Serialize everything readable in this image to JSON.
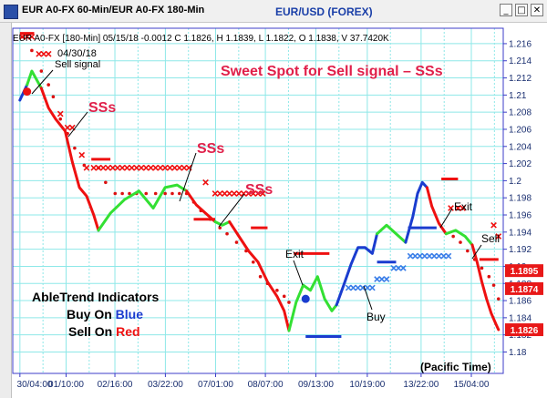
{
  "window": {
    "title": "EUR A0-FX 60-Min/EUR A0-FX 180-Min",
    "caption": "EUR/USD (FOREX)",
    "controls": [
      "_",
      "□",
      "✕"
    ]
  },
  "chart_data": {
    "type": "line",
    "info_line": "EUR A0-FX [180-Min] 05/15/18  -0.0012 C 1.1826, H 1.1839, L 1.1822, O 1.1838, V 37.7420K",
    "x_tick_labels": [
      "30/04:00",
      "01/10:00",
      "02/16:00",
      "03/22:00",
      "07/01:00",
      "08/07:00",
      "09/13:00",
      "10/19:00",
      "13/22:00",
      "15/04:00"
    ],
    "x_tick_positions": [
      0,
      19.4,
      39.9,
      61.1,
      82.2,
      103.1,
      124.3,
      145.9,
      168.5,
      189.6
    ],
    "xlim": [
      -3,
      203
    ],
    "ylim": [
      1.1775,
      1.2178
    ],
    "y_tick_values": [
      1.216,
      1.214,
      1.212,
      1.21,
      1.208,
      1.206,
      1.204,
      1.202,
      1.2,
      1.198,
      1.196,
      1.194,
      1.192,
      1.19,
      1.188,
      1.186,
      1.184,
      1.182,
      1.18
    ],
    "y_tick_labels": [
      "1.216",
      "1.214",
      "1.212",
      "1.21",
      "1.208",
      "1.206",
      "1.204",
      "1.202",
      "1.2",
      "1.198",
      "1.196",
      "1.194",
      "1.192",
      "1.19",
      "1.188",
      "1.186",
      "1.184",
      "1.182",
      "1.18"
    ],
    "price_tags": [
      {
        "value": 1.1895,
        "label": "1.1895"
      },
      {
        "value": 1.1874,
        "label": "1.1874"
      },
      {
        "value": 1.1826,
        "label": "1.1826"
      }
    ],
    "grid": true,
    "colors": {
      "up": "#1a3ccf",
      "down": "#ee1111",
      "neutral": "#33e033",
      "grid": "#8ee8e8",
      "stop_dot": "#dd1111",
      "stop_x_red": "#ee1111",
      "stop_x_blue": "#3a7ee8"
    },
    "price_segments": [
      {
        "color": "#1a3ccf",
        "points": [
          [
            0,
            1.2094
          ],
          [
            3,
            1.2112
          ]
        ]
      },
      {
        "color": "#33e033",
        "points": [
          [
            3,
            1.2112
          ],
          [
            5,
            1.2128
          ],
          [
            7,
            1.2118
          ],
          [
            9,
            1.2108
          ]
        ]
      },
      {
        "color": "#ee1111",
        "points": [
          [
            9,
            1.2108
          ],
          [
            12,
            1.2085
          ],
          [
            15,
            1.2072
          ],
          [
            19,
            1.2058
          ],
          [
            22,
            1.2022
          ],
          [
            25,
            1.1992
          ],
          [
            28,
            1.1982
          ],
          [
            31,
            1.196
          ],
          [
            33,
            1.1942
          ]
        ]
      },
      {
        "color": "#33e033",
        "points": [
          [
            33,
            1.1942
          ],
          [
            38,
            1.1962
          ],
          [
            44,
            1.1978
          ],
          [
            50,
            1.1988
          ],
          [
            56,
            1.1968
          ],
          [
            61,
            1.1992
          ],
          [
            66,
            1.1995
          ],
          [
            70,
            1.1988
          ]
        ]
      },
      {
        "color": "#ee1111",
        "points": [
          [
            70,
            1.1988
          ],
          [
            74,
            1.1972
          ],
          [
            78,
            1.1962
          ],
          [
            82,
            1.1952
          ]
        ]
      },
      {
        "color": "#33e033",
        "points": [
          [
            82,
            1.1952
          ],
          [
            85,
            1.1948
          ],
          [
            88,
            1.1952
          ]
        ]
      },
      {
        "color": "#ee1111",
        "points": [
          [
            88,
            1.1952
          ],
          [
            92,
            1.1935
          ],
          [
            96,
            1.1918
          ],
          [
            100,
            1.1905
          ],
          [
            104,
            1.1882
          ],
          [
            108,
            1.1865
          ],
          [
            111,
            1.1848
          ],
          [
            113,
            1.1825
          ]
        ]
      },
      {
        "color": "#33e033",
        "points": [
          [
            113,
            1.1825
          ],
          [
            116,
            1.1858
          ],
          [
            119,
            1.1878
          ],
          [
            122,
            1.1872
          ],
          [
            125,
            1.1888
          ],
          [
            128,
            1.1862
          ],
          [
            131,
            1.1848
          ],
          [
            133,
            1.1855
          ]
        ]
      },
      {
        "color": "#1a3ccf",
        "points": [
          [
            133,
            1.1855
          ],
          [
            136,
            1.1878
          ],
          [
            139,
            1.1902
          ],
          [
            142,
            1.1922
          ],
          [
            145,
            1.1922
          ],
          [
            148,
            1.1915
          ],
          [
            150,
            1.1938
          ]
        ]
      },
      {
        "color": "#33e033",
        "points": [
          [
            150,
            1.1938
          ],
          [
            154,
            1.1948
          ],
          [
            158,
            1.1938
          ],
          [
            162,
            1.1928
          ]
        ]
      },
      {
        "color": "#1a3ccf",
        "points": [
          [
            162,
            1.1928
          ],
          [
            165,
            1.1958
          ],
          [
            167,
            1.1985
          ],
          [
            169,
            1.1998
          ],
          [
            171,
            1.1992
          ]
        ]
      },
      {
        "color": "#ee1111",
        "points": [
          [
            171,
            1.1992
          ],
          [
            173,
            1.197
          ],
          [
            176,
            1.195
          ],
          [
            179,
            1.1938
          ]
        ]
      },
      {
        "color": "#33e033",
        "points": [
          [
            179,
            1.1938
          ],
          [
            183,
            1.1942
          ],
          [
            187,
            1.1935
          ],
          [
            190,
            1.1925
          ]
        ]
      },
      {
        "color": "#ee1111",
        "points": [
          [
            190,
            1.1925
          ],
          [
            192,
            1.1905
          ],
          [
            194,
            1.1882
          ],
          [
            196,
            1.1862
          ],
          [
            198,
            1.1845
          ],
          [
            200,
            1.1832
          ],
          [
            201,
            1.1826
          ]
        ]
      }
    ],
    "stops": {
      "dots": [
        [
          1,
          1.2168
        ],
        [
          5,
          1.2152
        ],
        [
          9,
          1.2128
        ],
        [
          12,
          1.2112
        ],
        [
          14,
          1.2098
        ],
        [
          17,
          1.2072
        ],
        [
          20,
          1.2055
        ],
        [
          23,
          1.2038
        ],
        [
          27,
          1.2018
        ],
        [
          33,
          1.2015
        ],
        [
          36,
          1.1998
        ],
        [
          40,
          1.1985
        ],
        [
          43,
          1.1985
        ],
        [
          46,
          1.1985
        ],
        [
          49,
          1.1985
        ],
        [
          53,
          1.1985
        ],
        [
          57,
          1.1985
        ],
        [
          61,
          1.1985
        ],
        [
          64,
          1.1985
        ],
        [
          67,
          1.1985
        ],
        [
          70,
          1.1985
        ],
        [
          73,
          1.1975
        ],
        [
          76,
          1.1965
        ],
        [
          80,
          1.1955
        ],
        [
          84,
          1.1945
        ],
        [
          87,
          1.1938
        ],
        [
          91,
          1.1928
        ],
        [
          95,
          1.1918
        ],
        [
          98,
          1.1905
        ],
        [
          101,
          1.1888
        ],
        [
          104,
          1.188
        ],
        [
          108,
          1.1872
        ],
        [
          111,
          1.1865
        ],
        [
          113,
          1.1858
        ],
        [
          182,
          1.1935
        ],
        [
          185,
          1.1928
        ],
        [
          188,
          1.1918
        ],
        [
          191,
          1.1908
        ],
        [
          194,
          1.1898
        ],
        [
          197,
          1.1888
        ],
        [
          199,
          1.1878
        ],
        [
          201,
          1.1862
        ]
      ],
      "red_x": [
        [
          1,
          1.2168
        ],
        [
          3,
          1.2168
        ],
        [
          5,
          1.2168
        ],
        [
          8,
          1.2148
        ],
        [
          10,
          1.2148
        ],
        [
          12,
          1.2148
        ],
        [
          17,
          1.2078
        ],
        [
          20,
          1.2062
        ],
        [
          22,
          1.2062
        ],
        [
          26,
          1.203
        ],
        [
          28,
          1.2015
        ],
        [
          31,
          1.2015
        ],
        [
          33,
          1.2015
        ],
        [
          35,
          1.2015
        ],
        [
          37,
          1.2015
        ],
        [
          39,
          1.2015
        ],
        [
          41,
          1.2015
        ],
        [
          43,
          1.2015
        ],
        [
          45,
          1.2015
        ],
        [
          47,
          1.2015
        ],
        [
          49,
          1.2015
        ],
        [
          51,
          1.2015
        ],
        [
          53,
          1.2015
        ],
        [
          55,
          1.2015
        ],
        [
          57,
          1.2015
        ],
        [
          59,
          1.2015
        ],
        [
          61,
          1.2015
        ],
        [
          63,
          1.2015
        ],
        [
          65,
          1.2015
        ],
        [
          67,
          1.2015
        ],
        [
          69,
          1.2015
        ],
        [
          71,
          1.2015
        ],
        [
          78,
          1.1998
        ],
        [
          82,
          1.1985
        ],
        [
          84,
          1.1985
        ],
        [
          86,
          1.1985
        ],
        [
          88,
          1.1985
        ],
        [
          90,
          1.1985
        ],
        [
          92,
          1.1985
        ],
        [
          94,
          1.1985
        ],
        [
          96,
          1.1985
        ],
        [
          98,
          1.1985
        ],
        [
          100,
          1.1985
        ],
        [
          102,
          1.1985
        ],
        [
          181,
          1.1968
        ],
        [
          184,
          1.1968
        ],
        [
          186,
          1.1968
        ],
        [
          199,
          1.1948
        ],
        [
          201,
          1.1935
        ]
      ],
      "blue_x": [
        [
          138,
          1.1875
        ],
        [
          140,
          1.1875
        ],
        [
          142,
          1.1875
        ],
        [
          144,
          1.1875
        ],
        [
          146,
          1.1875
        ],
        [
          148,
          1.1875
        ],
        [
          150,
          1.1885
        ],
        [
          152,
          1.1885
        ],
        [
          154,
          1.1885
        ],
        [
          157,
          1.1898
        ],
        [
          159,
          1.1898
        ],
        [
          161,
          1.1898
        ],
        [
          164,
          1.1912
        ],
        [
          166,
          1.1912
        ],
        [
          168,
          1.1912
        ],
        [
          170,
          1.1912
        ],
        [
          172,
          1.1912
        ],
        [
          174,
          1.1912
        ],
        [
          176,
          1.1912
        ],
        [
          178,
          1.1912
        ],
        [
          180,
          1.1912
        ]
      ],
      "red_bars": [
        [
          0,
          6,
          1.2172
        ],
        [
          30,
          38,
          1.2025
        ],
        [
          73,
          82,
          1.1955
        ],
        [
          97,
          104,
          1.1945
        ],
        [
          115,
          130,
          1.1915
        ],
        [
          177,
          184,
          1.2002
        ],
        [
          193,
          201,
          1.1908
        ]
      ],
      "blue_bars": [
        [
          120,
          135,
          1.1818
        ],
        [
          150,
          158,
          1.1905
        ],
        [
          163,
          175,
          1.1945
        ]
      ]
    },
    "markers": [
      {
        "kind": "sell",
        "x": 3,
        "y": 1.2104,
        "color": "#ee1111"
      },
      {
        "kind": "buy",
        "x": 120,
        "y": 1.1862,
        "color": "#1a3ccf"
      }
    ],
    "annotations": {
      "date_label": "04/30/18",
      "sell_signal": "Sell signal",
      "headline": "Sweet Spot for Sell signal – SSs",
      "ss_labels": [
        "SSs",
        "SSs",
        "SSs",
        "SSs"
      ],
      "exit_1": "Exit",
      "exit_2": "Exit",
      "buy": "Buy",
      "sell": "Sell",
      "legend_title": "AbleTrend Indicators",
      "legend_buy_prefix": "Buy On ",
      "legend_buy_word": "Blue",
      "legend_sell_prefix": "Sell On ",
      "legend_sell_word": "Red",
      "timezone": "(Pacific Time)"
    }
  }
}
